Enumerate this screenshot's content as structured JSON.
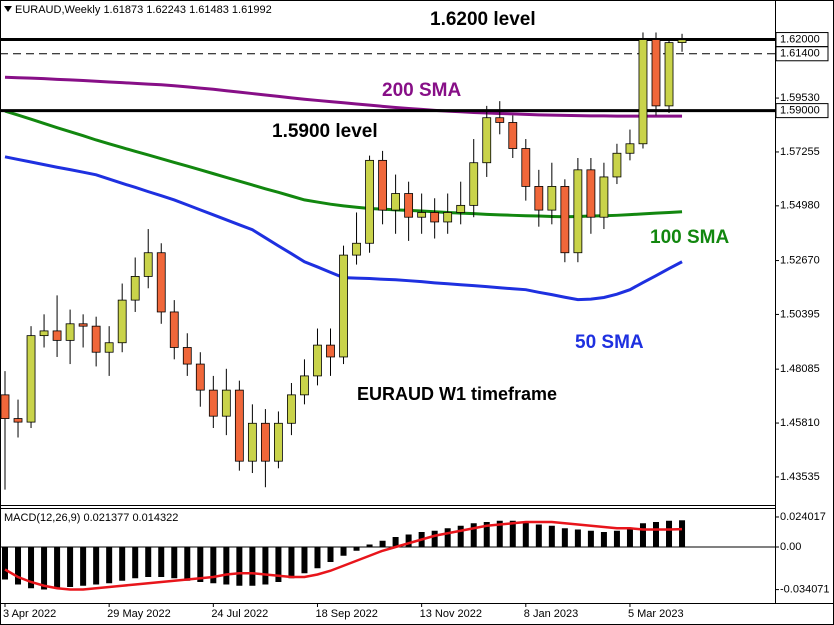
{
  "chart_data": {
    "type": "candlestick",
    "symbol": "EURAUD,Weekly",
    "categories": [
      "3 Apr 2022",
      null,
      null,
      null,
      null,
      null,
      null,
      null,
      "29 May 2022",
      null,
      null,
      null,
      null,
      null,
      null,
      null,
      "24 Jul 2022",
      null,
      null,
      null,
      null,
      null,
      null,
      null,
      "18 Sep 2022",
      null,
      null,
      null,
      null,
      null,
      null,
      null,
      "13 Nov 2022",
      null,
      null,
      null,
      null,
      null,
      null,
      null,
      "8 Jan 2023",
      null,
      null,
      null,
      null,
      null,
      null,
      null,
      "5 Mar 2023",
      null,
      null,
      null,
      null
    ],
    "open": [
      1.47,
      1.46,
      1.4585,
      1.495,
      1.497,
      1.493,
      1.5,
      1.499,
      1.488,
      1.492,
      1.51,
      1.52,
      1.53,
      1.505,
      1.49,
      1.483,
      1.472,
      1.461,
      1.472,
      1.442,
      1.458,
      1.442,
      1.458,
      1.47,
      1.478,
      1.491,
      1.486,
      1.529,
      1.534,
      1.569,
      1.548,
      1.555,
      1.545,
      1.547,
      1.543,
      1.547,
      1.55,
      1.568,
      1.587,
      1.585,
      1.574,
      1.558,
      1.548,
      1.558,
      1.53,
      1.565,
      1.545,
      1.562,
      1.572,
      1.576,
      1.62,
      1.592,
      1.61873
    ],
    "high": [
      1.48,
      1.468,
      1.499,
      1.504,
      1.512,
      1.506,
      1.504,
      1.503,
      1.499,
      1.517,
      1.528,
      1.54,
      1.534,
      1.51,
      1.496,
      1.488,
      1.478,
      1.481,
      1.476,
      1.466,
      1.464,
      1.463,
      1.475,
      1.485,
      1.498,
      1.498,
      1.533,
      1.547,
      1.571,
      1.573,
      1.563,
      1.56,
      1.555,
      1.553,
      1.555,
      1.56,
      1.578,
      1.592,
      1.594,
      1.588,
      1.578,
      1.565,
      1.568,
      1.561,
      1.57,
      1.57,
      1.568,
      1.576,
      1.582,
      1.623,
      1.623,
      1.62,
      1.62243
    ],
    "low": [
      1.43,
      1.452,
      1.456,
      1.49,
      1.486,
      1.483,
      1.49,
      1.482,
      1.478,
      1.488,
      1.505,
      1.515,
      1.5,
      1.485,
      1.478,
      1.465,
      1.456,
      1.453,
      1.438,
      1.437,
      1.431,
      1.439,
      1.453,
      1.466,
      1.474,
      1.478,
      1.483,
      1.525,
      1.53,
      1.542,
      1.538,
      1.535,
      1.538,
      1.536,
      1.538,
      1.542,
      1.545,
      1.562,
      1.58,
      1.57,
      1.552,
      1.541,
      1.542,
      1.526,
      1.526,
      1.538,
      1.54,
      1.559,
      1.569,
      1.574,
      1.588,
      1.589,
      1.61483
    ],
    "close": [
      1.46,
      1.4585,
      1.495,
      1.497,
      1.493,
      1.5,
      1.499,
      1.488,
      1.492,
      1.51,
      1.52,
      1.53,
      1.505,
      1.49,
      1.483,
      1.472,
      1.461,
      1.472,
      1.442,
      1.458,
      1.442,
      1.458,
      1.47,
      1.478,
      1.491,
      1.486,
      1.529,
      1.534,
      1.569,
      1.548,
      1.555,
      1.545,
      1.547,
      1.543,
      1.547,
      1.55,
      1.568,
      1.587,
      1.585,
      1.574,
      1.558,
      1.548,
      1.558,
      1.53,
      1.565,
      1.545,
      1.562,
      1.572,
      1.576,
      1.62,
      1.592,
      1.6187,
      1.61992
    ],
    "up_color": "#c9d34a",
    "down_color": "#f0673a",
    "ylim": [
      1.4235,
      1.6367
    ],
    "yticks": [
      1.43535,
      {
        "value": 1.4581,
        "label": "1.45810"
      },
      1.48085,
      1.50395,
      {
        "value": 1.5267,
        "label": "1.52670"
      },
      {
        "value": 1.5498,
        "label": "1.54980"
      },
      1.57255,
      {
        "value": 1.5953,
        "label": "1.59530"
      }
    ],
    "hlines": [
      {
        "value": 1.62,
        "label": "1.62000"
      },
      {
        "value": 1.614,
        "label": "1.61400",
        "dashed": true
      },
      {
        "value": 1.59,
        "label": "1.59000"
      }
    ],
    "series": [
      {
        "name": "200 SMA",
        "color": "#870f87",
        "values": [
          1.6041,
          1.6039,
          1.6037,
          1.6035,
          1.6032,
          1.603,
          1.6027,
          1.6024,
          1.6021,
          1.6018,
          1.6015,
          1.6012,
          1.6009,
          1.6005,
          1.6,
          1.5995,
          1.599,
          1.5984,
          1.5978,
          1.5972,
          1.5966,
          1.596,
          1.5954,
          1.5948,
          1.5943,
          1.5938,
          1.5933,
          1.5928,
          1.5923,
          1.5918,
          1.5913,
          1.5909,
          1.5905,
          1.5901,
          1.5898,
          1.5895,
          1.5892,
          1.589,
          1.5888,
          1.5886,
          1.5884,
          1.5882,
          1.5881,
          1.588,
          1.5879,
          1.5878,
          1.5878,
          1.5877,
          1.5877,
          1.5877,
          1.5877,
          1.5877,
          1.5877
        ]
      },
      {
        "name": "100 SMA",
        "color": "#12870f",
        "values": [
          1.5898,
          1.5881,
          1.5864,
          1.5846,
          1.5828,
          1.5811,
          1.5794,
          1.5776,
          1.576,
          1.5744,
          1.5728,
          1.5713,
          1.5697,
          1.5681,
          1.5666,
          1.565,
          1.5634,
          1.5618,
          1.5602,
          1.5586,
          1.557,
          1.5555,
          1.5539,
          1.5523,
          1.5514,
          1.5505,
          1.5498,
          1.5492,
          1.5487,
          1.5484,
          1.5481,
          1.5479,
          1.5476,
          1.5473,
          1.547,
          1.5467,
          1.5465,
          1.5462,
          1.546,
          1.5458,
          1.5456,
          1.5455,
          1.5453,
          1.5452,
          1.5453,
          1.5455,
          1.5456,
          1.5458,
          1.5461,
          1.5464,
          1.5467,
          1.547,
          1.5473
        ]
      },
      {
        "name": "50 SMA",
        "color": "#1e30e0",
        "values": [
          1.5705,
          1.5694,
          1.5683,
          1.5672,
          1.5661,
          1.5651,
          1.564,
          1.5629,
          1.5611,
          1.5593,
          1.5576,
          1.5558,
          1.5541,
          1.5523,
          1.5502,
          1.5481,
          1.546,
          1.5439,
          1.5418,
          1.5397,
          1.5363,
          1.5329,
          1.5296,
          1.5262,
          1.524,
          1.5217,
          1.5195,
          1.5193,
          1.5191,
          1.5188,
          1.5186,
          1.5182,
          1.5178,
          1.5173,
          1.5169,
          1.5165,
          1.5161,
          1.5157,
          1.5152,
          1.5148,
          1.5144,
          1.5133,
          1.5123,
          1.5112,
          1.5102,
          1.5104,
          1.5111,
          1.5125,
          1.5144,
          1.5174,
          1.5203,
          1.5233,
          1.5262
        ]
      }
    ],
    "annotations": [
      {
        "text": "1.6200 level"
      },
      {
        "text": "1.5900 level"
      },
      {
        "text": "EURAUD W1 timeframe"
      }
    ],
    "macd": {
      "label": "MACD(12,26,9)",
      "ylim": [
        -0.044,
        0.0312
      ],
      "yticks": [
        0.024017,
        {
          "value": 0,
          "label": "0.00"
        },
        -0.034071
      ],
      "histogram": [
        -0.026,
        -0.03,
        -0.033,
        -0.034,
        -0.033,
        -0.032,
        -0.031,
        -0.03,
        -0.029,
        -0.027,
        -0.025,
        -0.024,
        -0.024,
        -0.025,
        -0.027,
        -0.028,
        -0.029,
        -0.03,
        -0.031,
        -0.031,
        -0.03,
        -0.028,
        -0.025,
        -0.021,
        -0.017,
        -0.012,
        -0.007,
        -0.003,
        0.002,
        0.005,
        0.008,
        0.01,
        0.012,
        0.013,
        0.015,
        0.017,
        0.019,
        0.02,
        0.021,
        0.021,
        0.02,
        0.018,
        0.017,
        0.015,
        0.014,
        0.013,
        0.012,
        0.013,
        0.015,
        0.019,
        0.02,
        0.021,
        0.021377
      ],
      "signal": [
        -0.018,
        -0.024,
        -0.028,
        -0.031,
        -0.033,
        -0.034,
        -0.034,
        -0.033,
        -0.032,
        -0.031,
        -0.03,
        -0.029,
        -0.028,
        -0.027,
        -0.026,
        -0.025,
        -0.024,
        -0.022,
        -0.021,
        -0.021,
        -0.022,
        -0.023,
        -0.024,
        -0.024,
        -0.022,
        -0.019,
        -0.015,
        -0.011,
        -0.007,
        -0.003,
        0.0,
        0.003,
        0.006,
        0.009,
        0.011,
        0.013,
        0.015,
        0.017,
        0.018,
        0.019,
        0.02,
        0.02,
        0.02,
        0.019,
        0.018,
        0.017,
        0.016,
        0.015,
        0.015,
        0.014,
        0.014,
        0.014,
        0.014322
      ],
      "histogram_color": "#000000",
      "signal_color": "#e8151b"
    }
  }
}
